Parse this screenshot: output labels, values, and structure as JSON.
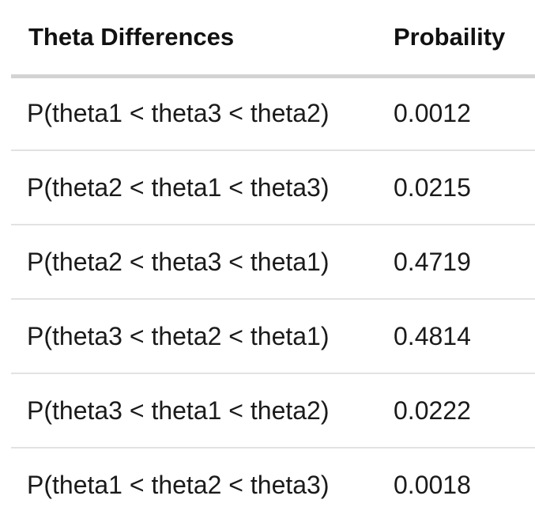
{
  "table": {
    "headers": {
      "col1": "Theta Differences",
      "col2": "Probaility"
    },
    "rows": [
      {
        "label": "P(theta1 < theta3 < theta2)",
        "value": "0.0012"
      },
      {
        "label": "P(theta2 < theta1 < theta3)",
        "value": "0.0215"
      },
      {
        "label": "P(theta2 < theta3 < theta1)",
        "value": "0.4719"
      },
      {
        "label": "P(theta3 < theta2 < theta1)",
        "value": "0.4814"
      },
      {
        "label": "P(theta3 < theta1 < theta2)",
        "value": "0.0222"
      },
      {
        "label": "P(theta1 < theta2 < theta3)",
        "value": "0.0018"
      }
    ]
  }
}
